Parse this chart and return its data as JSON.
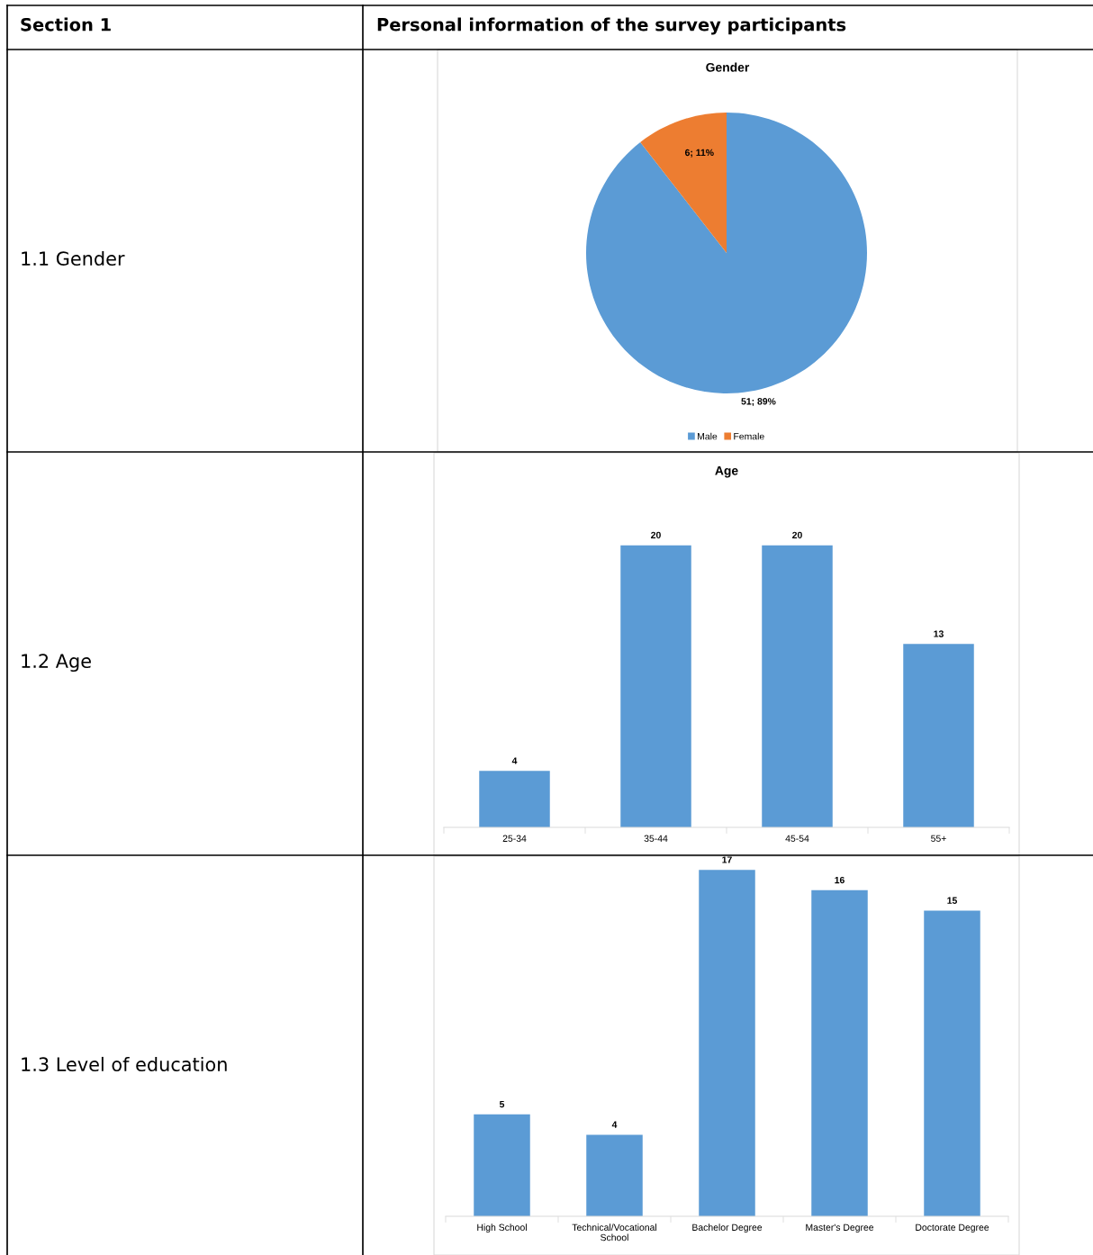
{
  "chart_data": [
    {
      "type": "pie",
      "title": "Gender",
      "categories": [
        "Male",
        "Female"
      ],
      "values": [
        51,
        6
      ],
      "colors": [
        "#5b9bd5",
        "#ed7d31"
      ],
      "value_labels": [
        "51; 89%",
        "6; 11%"
      ],
      "legend": "bottom",
      "annotations": [
        "Section 1",
        "Personal information of the survey participants",
        "1.1 Gender"
      ]
    },
    {
      "type": "bar",
      "title": "Age",
      "categories": [
        "25-34",
        "35-44",
        "45-54",
        "55+"
      ],
      "values": [
        4,
        20,
        20,
        13
      ],
      "color": "#5b9bd5",
      "data_labels": true,
      "tick_labels": "x",
      "annotations": [
        "1.2 Age"
      ]
    },
    {
      "type": "bar",
      "categories": [
        "High School",
        "Technical/Vocational\nSchool",
        "Bachelor Degree",
        "Master's Degree",
        "Doctorate Degree"
      ],
      "values": [
        5,
        4,
        17,
        16,
        15
      ],
      "color": "#5b9bd5",
      "data_labels": true,
      "tick_labels": "x",
      "annotations": [
        "1.3 Level of education"
      ]
    }
  ]
}
